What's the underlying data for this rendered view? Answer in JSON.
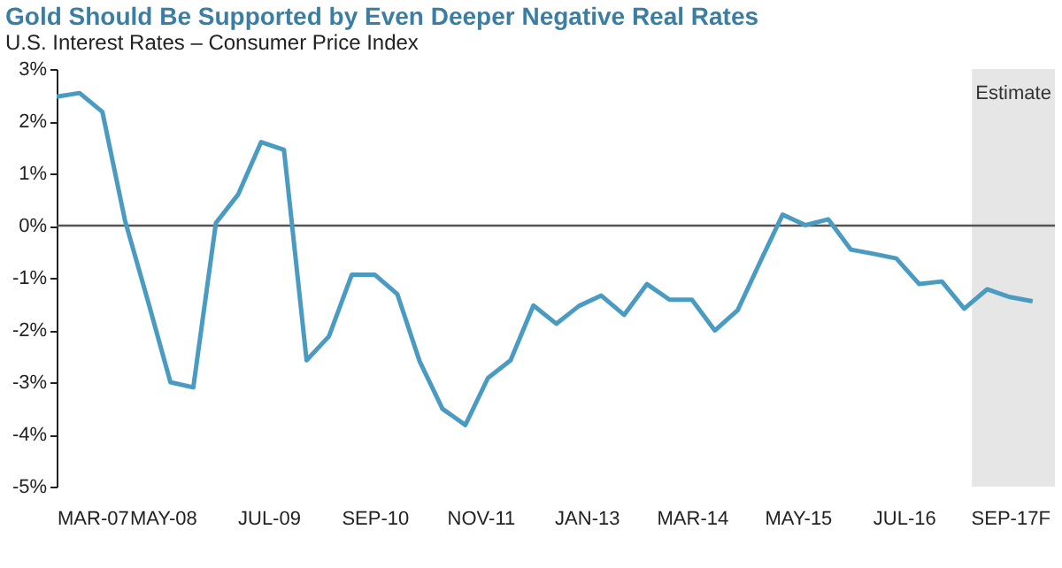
{
  "chart_data": {
    "type": "line",
    "title": "Gold Should Be Supported by Even Deeper Negative Real Rates",
    "subtitle": "U.S. Interest Rates – Consumer Price Index",
    "x": [
      "2007-03",
      "2007-06",
      "2007-09",
      "2007-12",
      "2008-03",
      "2008-06",
      "2008-09",
      "2008-12",
      "2009-03",
      "2009-06",
      "2009-09",
      "2009-12",
      "2010-03",
      "2010-06",
      "2010-09",
      "2010-12",
      "2011-03",
      "2011-06",
      "2011-09",
      "2011-12",
      "2012-03",
      "2012-06",
      "2012-09",
      "2012-12",
      "2013-03",
      "2013-06",
      "2013-09",
      "2013-12",
      "2014-03",
      "2014-06",
      "2014-09",
      "2014-12",
      "2015-03",
      "2015-06",
      "2015-09",
      "2015-12",
      "2016-03",
      "2016-06",
      "2016-09",
      "2016-12",
      "2017-03",
      "2017-06",
      "2017-09",
      "2017-12"
    ],
    "series": [
      {
        "color": "#4a9bc2",
        "values": [
          2.47,
          2.54,
          2.18,
          0.1,
          -1.42,
          -3.0,
          -3.1,
          0.05,
          0.6,
          1.6,
          1.45,
          -2.58,
          -2.12,
          -0.94,
          -0.94,
          -1.31,
          -2.6,
          -3.51,
          -3.82,
          -2.92,
          -2.58,
          -1.53,
          -1.88,
          -1.54,
          -1.34,
          -1.71,
          -1.12,
          -1.42,
          -1.42,
          -2.01,
          -1.62,
          -0.69,
          0.21,
          0.01,
          0.12,
          -0.46,
          -0.54,
          -0.63,
          -1.12,
          -1.07,
          -1.59,
          -1.22,
          -1.37,
          -1.45
        ]
      }
    ],
    "xlim": [
      "2007-03",
      "2018-03"
    ],
    "xticks": [
      {
        "value": "2007-03",
        "label": "MAR-07"
      },
      {
        "value": "2008-05",
        "label": "MAY-08"
      },
      {
        "value": "2009-07",
        "label": "JUL-09"
      },
      {
        "value": "2010-09",
        "label": "SEP-10"
      },
      {
        "value": "2011-11",
        "label": "NOV-11"
      },
      {
        "value": "2013-01",
        "label": "JAN-13"
      },
      {
        "value": "2014-03",
        "label": "MAR-14"
      },
      {
        "value": "2015-05",
        "label": "MAY-15"
      },
      {
        "value": "2016-07",
        "label": "JUL-16"
      },
      {
        "value": "2017-09",
        "label": "SEP-17F"
      }
    ],
    "ylim": [
      -5,
      3
    ],
    "yticks": [
      {
        "value": -5,
        "label": "-5%"
      },
      {
        "value": -4,
        "label": "-4%"
      },
      {
        "value": -3,
        "label": "-3%"
      },
      {
        "value": -2,
        "label": "-2%"
      },
      {
        "value": -1,
        "label": "-1%"
      },
      {
        "value": 0,
        "label": "0%"
      },
      {
        "value": 1,
        "label": "1%"
      },
      {
        "value": 2,
        "label": "2%"
      },
      {
        "value": 3,
        "label": "3%"
      }
    ],
    "ref_lines": [
      {
        "axis": "y",
        "value": 0,
        "color": "#555555"
      }
    ],
    "bands": [
      {
        "axis": "x",
        "from": "2017-04",
        "to": "2018-03",
        "label": "Estimate",
        "color": "#e6e6e6"
      }
    ],
    "grid": false,
    "line_style": "solid",
    "marker": "none"
  }
}
